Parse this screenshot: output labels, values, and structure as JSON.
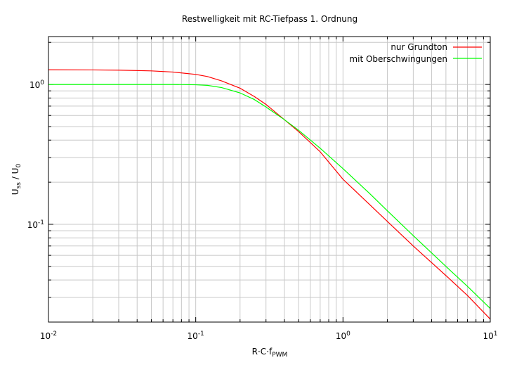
{
  "chart_data": {
    "type": "line",
    "title": "Restwelligkeit mit RC-Tiefpass 1. Ordnung",
    "xlabel_main": "R·C·f",
    "xlabel_sub": "PWM",
    "ylabel_main": "U",
    "ylabel_sub1": "ss",
    "ylabel_mid": " / U",
    "ylabel_sub2": "0",
    "x_scale": "log",
    "y_scale": "log",
    "xlim": [
      0.01,
      10
    ],
    "ylim": [
      0.02,
      2.2
    ],
    "grid": true,
    "legend_position": "top-right",
    "x_ticks": [
      {
        "value": 0.01,
        "base": "10",
        "exp": "-2"
      },
      {
        "value": 0.1,
        "base": "10",
        "exp": "-1"
      },
      {
        "value": 1,
        "base": "10",
        "exp": "0"
      },
      {
        "value": 10,
        "base": "10",
        "exp": "1"
      }
    ],
    "y_ticks": [
      {
        "value": 0.1,
        "base": "10",
        "exp": "-1"
      },
      {
        "value": 1,
        "base": "10",
        "exp": "0"
      }
    ],
    "series": [
      {
        "name": "nur Grundton",
        "color": "#ff0000",
        "points": [
          [
            0.01,
            1.273
          ],
          [
            0.02,
            1.27
          ],
          [
            0.03,
            1.266
          ],
          [
            0.05,
            1.25
          ],
          [
            0.07,
            1.227
          ],
          [
            0.1,
            1.18
          ],
          [
            0.12,
            1.14
          ],
          [
            0.15,
            1.06
          ],
          [
            0.2,
            0.94
          ],
          [
            0.25,
            0.82
          ],
          [
            0.3,
            0.72
          ],
          [
            0.4,
            0.56
          ],
          [
            0.5,
            0.46
          ],
          [
            0.7,
            0.33
          ],
          [
            1.0,
            0.21
          ],
          [
            1.5,
            0.14
          ],
          [
            2.0,
            0.105
          ],
          [
            3.0,
            0.07
          ],
          [
            5.0,
            0.043
          ],
          [
            7.0,
            0.031
          ],
          [
            10.0,
            0.021
          ]
        ]
      },
      {
        "name": "mit Oberschwingungen",
        "color": "#00ff00",
        "points": [
          [
            0.01,
            1.0
          ],
          [
            0.03,
            1.0
          ],
          [
            0.05,
            1.0
          ],
          [
            0.07,
            1.0
          ],
          [
            0.1,
            0.995
          ],
          [
            0.12,
            0.985
          ],
          [
            0.15,
            0.95
          ],
          [
            0.2,
            0.87
          ],
          [
            0.25,
            0.78
          ],
          [
            0.3,
            0.69
          ],
          [
            0.4,
            0.56
          ],
          [
            0.5,
            0.47
          ],
          [
            0.7,
            0.35
          ],
          [
            1.0,
            0.25
          ],
          [
            1.5,
            0.168
          ],
          [
            2.0,
            0.125
          ],
          [
            3.0,
            0.083
          ],
          [
            5.0,
            0.05
          ],
          [
            7.0,
            0.036
          ],
          [
            10.0,
            0.025
          ]
        ]
      }
    ]
  }
}
